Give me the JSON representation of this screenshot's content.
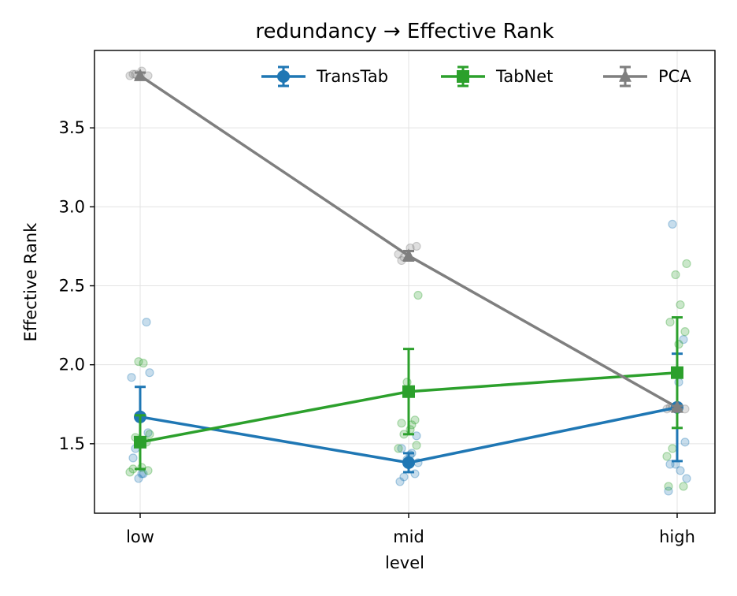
{
  "chart_data": {
    "type": "line",
    "title": "redundancy → Effective Rank",
    "xlabel": "level",
    "ylabel": "Effective Rank",
    "categories": [
      "low",
      "mid",
      "high"
    ],
    "ylim": [
      1.06,
      3.99
    ],
    "yticks": [
      1.5,
      2.0,
      2.5,
      3.0,
      3.5
    ],
    "ytick_labels": [
      "1.5",
      "2.0",
      "2.5",
      "3.0",
      "3.5"
    ],
    "grid": true,
    "legend_position": "top-right",
    "series": [
      {
        "name": "TransTab",
        "color": "#1f77b4",
        "marker": "circle",
        "values": [
          1.67,
          1.38,
          1.73
        ],
        "errors": [
          0.19,
          0.06,
          0.34
        ],
        "points": [
          [
            1.47,
            2.27,
            1.92,
            1.95,
            1.28,
            1.31,
            1.41,
            1.57,
            1.31
          ],
          [
            1.29,
            1.31,
            1.26,
            1.38,
            1.4,
            1.44,
            1.47,
            1.55,
            1.43
          ],
          [
            2.89,
            2.16,
            1.2,
            1.28,
            1.37,
            1.33,
            1.37,
            1.51,
            1.89
          ]
        ]
      },
      {
        "name": "TabNet",
        "color": "#2ca02c",
        "marker": "square",
        "values": [
          1.51,
          1.83,
          1.95
        ],
        "errors": [
          0.17,
          0.27,
          0.35
        ],
        "points": [
          [
            1.56,
            2.02,
            2.01,
            1.34,
            1.33,
            1.35,
            1.32,
            1.54,
            1.51
          ],
          [
            2.44,
            1.89,
            1.62,
            1.63,
            1.49,
            1.59,
            1.47,
            1.56,
            1.65
          ],
          [
            2.64,
            2.57,
            2.38,
            2.27,
            2.21,
            2.13,
            1.42,
            1.47,
            1.23,
            1.23
          ]
        ]
      },
      {
        "name": "PCA",
        "color": "#7f7f7f",
        "marker": "triangle",
        "values": [
          3.83,
          2.69,
          1.73
        ],
        "errors": [
          0.02,
          0.03,
          0.01
        ],
        "points": [
          [
            3.84,
            3.83,
            3.86,
            3.83,
            3.84
          ],
          [
            2.66,
            2.75,
            2.74,
            2.7,
            2.68
          ],
          [
            1.73,
            1.72,
            1.74,
            1.72,
            1.73
          ]
        ]
      }
    ]
  }
}
